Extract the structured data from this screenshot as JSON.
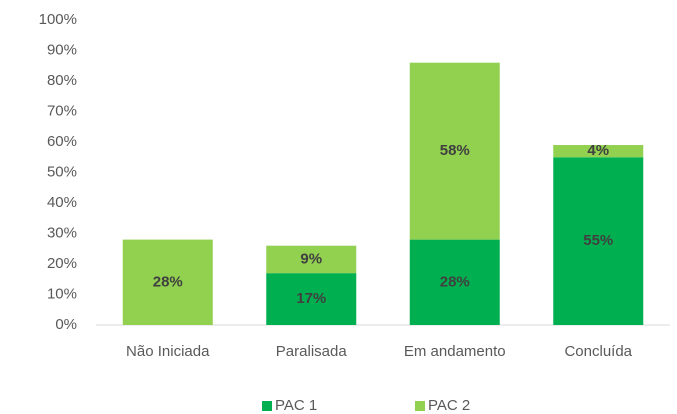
{
  "chart_data": {
    "type": "stacked_bar",
    "categories": [
      "Não Iniciada",
      "Paralisada",
      "Em andamento",
      "Concluída"
    ],
    "series": [
      {
        "name": "PAC 1",
        "color": "#00b050",
        "values": [
          0,
          17,
          28,
          55
        ],
        "value_labels": [
          null,
          "17%",
          "28%",
          "55%"
        ]
      },
      {
        "name": "PAC 2",
        "color": "#92d050",
        "values": [
          28,
          9,
          58,
          4
        ],
        "value_labels": [
          "28%",
          "9%",
          "58%",
          "4%"
        ]
      }
    ],
    "ylim": [
      0,
      100
    ],
    "yticks": [
      {
        "value": 0,
        "label": "0%"
      },
      {
        "value": 10,
        "label": "10%"
      },
      {
        "value": 20,
        "label": "20%"
      },
      {
        "value": 30,
        "label": "30%"
      },
      {
        "value": 40,
        "label": "40%"
      },
      {
        "value": 50,
        "label": "50%"
      },
      {
        "value": 60,
        "label": "60%"
      },
      {
        "value": 70,
        "label": "70%"
      },
      {
        "value": 80,
        "label": "80%"
      },
      {
        "value": 90,
        "label": "90%"
      },
      {
        "value": 100,
        "label": "100%"
      }
    ],
    "grid": false,
    "legend": "bottom"
  }
}
